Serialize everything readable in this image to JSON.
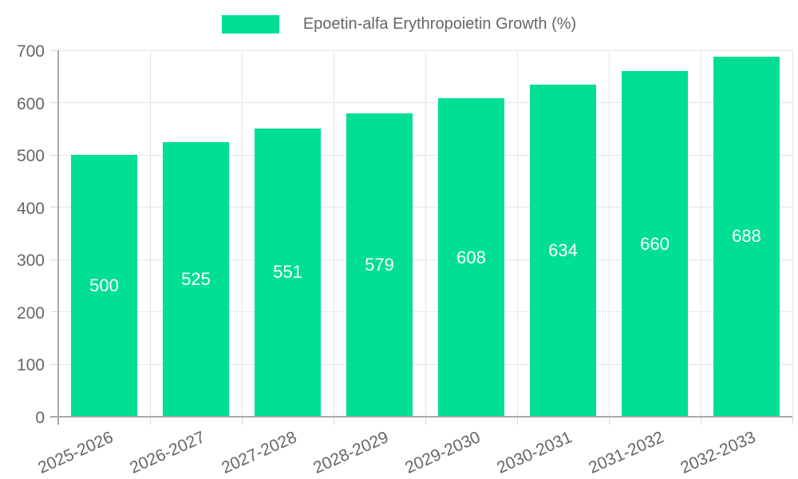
{
  "legend": {
    "label": "Epoetin-alfa Erythropoietin Growth (%)"
  },
  "colors": {
    "bar": "#00df92",
    "grid": "#e6e6e6",
    "axis_border": "#a9a9a9",
    "tick_mark": "#d9d9d9",
    "tick_text": "#666666",
    "legend_text": "#666666",
    "bar_label_text": "#ffffff"
  },
  "chart_data": {
    "type": "bar",
    "title": "Epoetin-alfa Erythropoietin Growth (%)",
    "categories": [
      "2025-2026",
      "2026-2027",
      "2027-2028",
      "2028-2029",
      "2029-2030",
      "2030-2031",
      "2031-2032",
      "2032-2033"
    ],
    "values": [
      500,
      525,
      551,
      579,
      608,
      634,
      660,
      688
    ],
    "xlabel": "",
    "ylabel": "",
    "ylim": [
      0,
      700
    ],
    "ytick_step": 100,
    "ytick_labels": [
      "0",
      "100",
      "200",
      "300",
      "400",
      "500",
      "600",
      "700"
    ],
    "grid": true,
    "legend_position": "top",
    "bar_value_labels": "inside-center",
    "x_label_rotation_deg": -24
  }
}
